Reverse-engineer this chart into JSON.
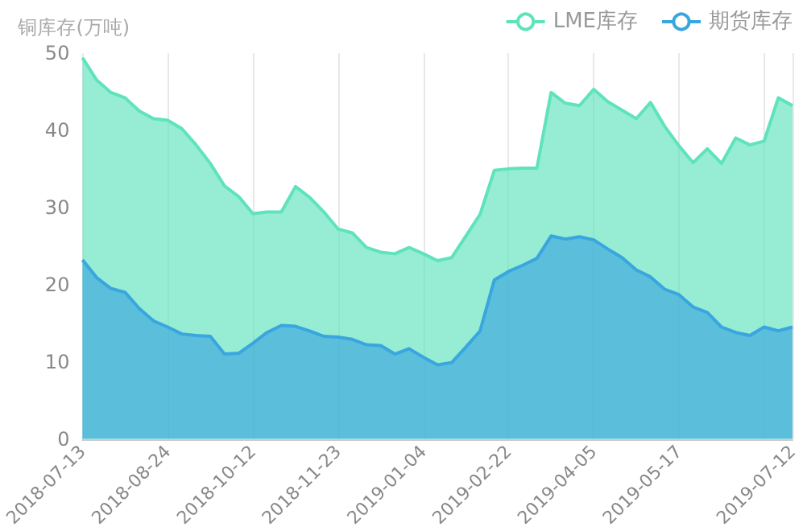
{
  "chart_data": {
    "type": "area",
    "ylabel": "铜库存(万吨)",
    "categories": [
      "2018-07-13",
      null,
      null,
      null,
      null,
      null,
      "2018-08-24",
      null,
      null,
      null,
      null,
      null,
      "2018-10-12",
      null,
      null,
      null,
      null,
      null,
      "2018-11-23",
      null,
      null,
      null,
      null,
      null,
      "2019-01-04",
      null,
      null,
      null,
      null,
      null,
      "2019-02-22",
      null,
      null,
      null,
      null,
      null,
      "2019-04-05",
      null,
      null,
      null,
      null,
      null,
      "2019-05-17",
      null,
      null,
      null,
      null,
      null,
      null,
      null,
      "2019-07-12"
    ],
    "series": [
      {
        "name": "LME库存",
        "color": "#5fe3bd",
        "values": [
          49.4,
          46.5,
          44.9,
          44.2,
          42.5,
          41.5,
          41.3,
          40.2,
          38.1,
          35.7,
          32.8,
          31.4,
          29.2,
          29.4,
          29.4,
          32.7,
          31.3,
          29.4,
          27.2,
          26.7,
          24.8,
          24.2,
          24.0,
          24.8,
          24.0,
          23.1,
          23.5,
          26.3,
          29.1,
          34.8,
          35.0,
          35.1,
          35.1,
          44.9,
          43.5,
          43.2,
          45.3,
          43.7,
          42.6,
          41.5,
          43.6,
          40.5,
          38.0,
          35.8,
          37.6,
          35.7,
          39.0,
          38.1,
          38.6,
          44.2,
          43.2
        ]
      },
      {
        "name": "期货库存",
        "color": "#3aa6df",
        "values": [
          23.2,
          20.9,
          19.5,
          19.0,
          16.9,
          15.3,
          14.5,
          13.6,
          13.4,
          13.3,
          11.0,
          11.1,
          12.4,
          13.8,
          14.7,
          14.6,
          14.0,
          13.3,
          13.2,
          12.9,
          12.2,
          12.1,
          11.0,
          11.7,
          10.6,
          9.6,
          9.9,
          11.9,
          14.0,
          20.6,
          21.7,
          22.5,
          23.4,
          26.3,
          25.9,
          26.2,
          25.8,
          24.6,
          23.5,
          21.9,
          21.0,
          19.4,
          18.7,
          17.1,
          16.4,
          14.5,
          13.8,
          13.4,
          14.5,
          14.0,
          14.5
        ]
      }
    ],
    "ylim": [
      0,
      50
    ],
    "yticks": [
      0,
      10,
      20,
      30,
      40,
      50
    ],
    "grid": "x",
    "legend": "top right",
    "marker": "none"
  }
}
